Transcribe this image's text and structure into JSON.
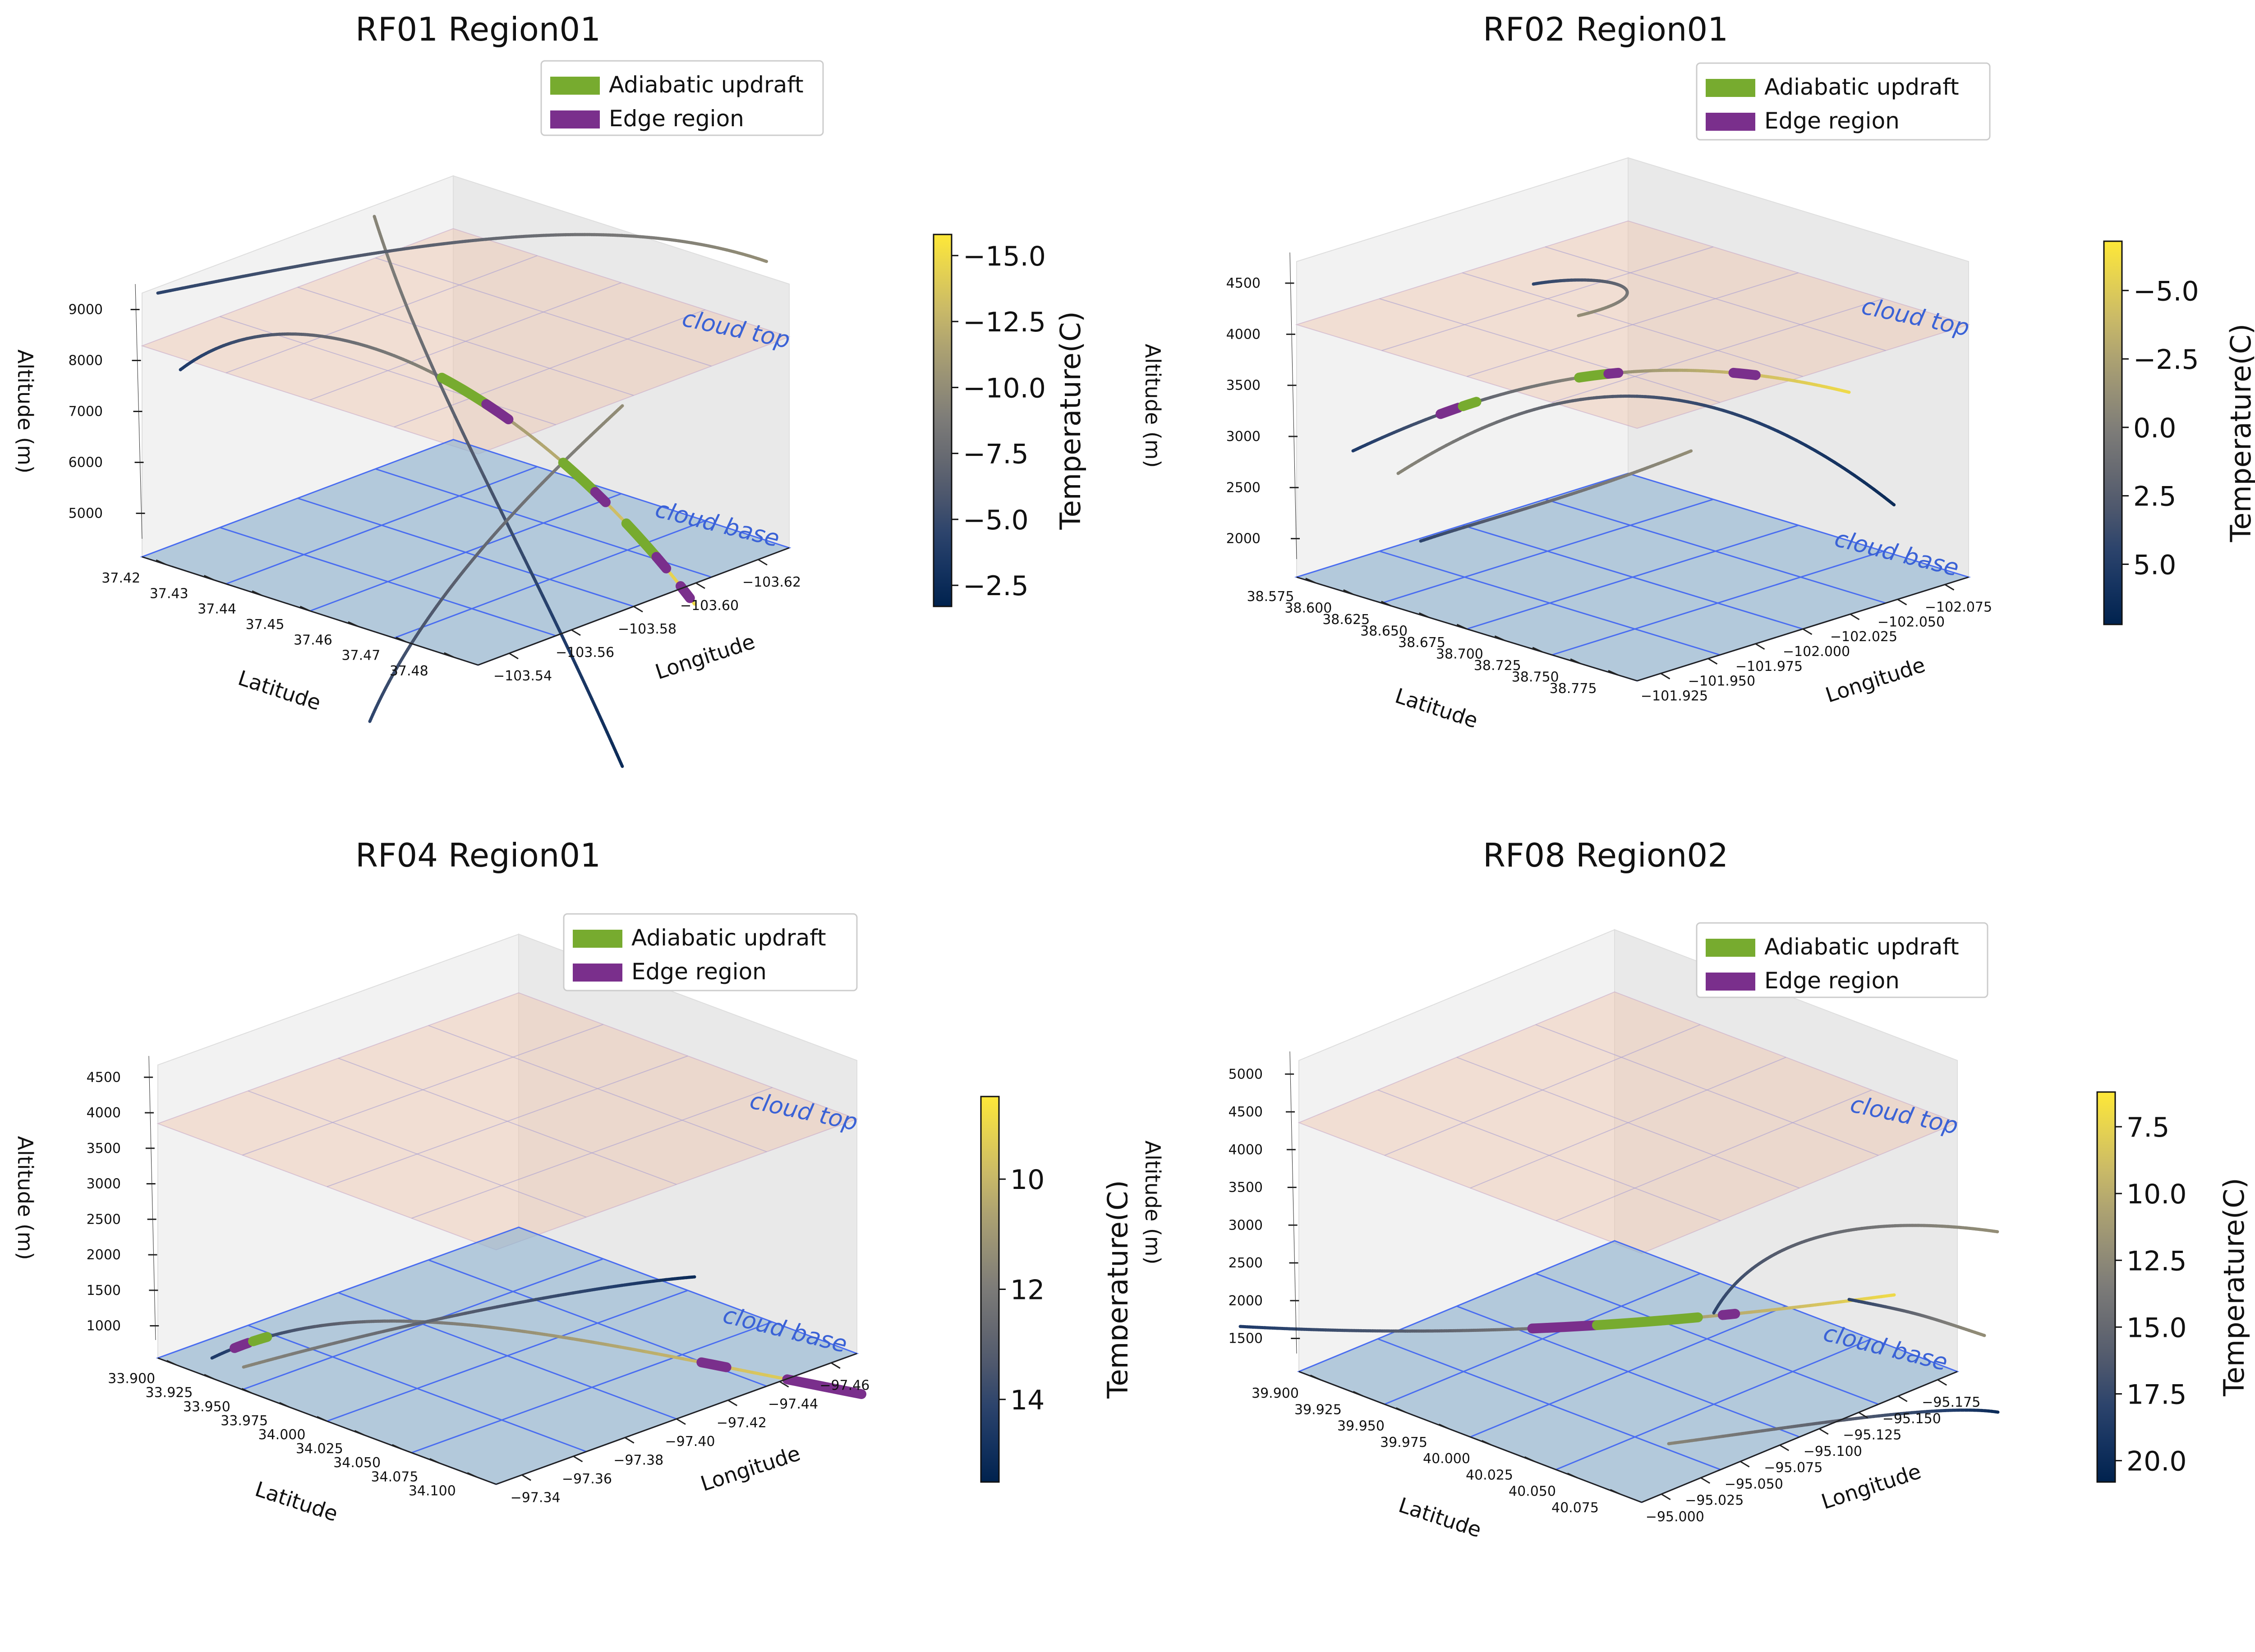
{
  "chart_data": [
    {
      "type": "line",
      "title": "RF01 Region01",
      "xlabel": "Latitude",
      "ylabel": "Longitude",
      "zlabel": "Altitude (m)",
      "colorbar_label": "Temperature(C)",
      "colorbar_ticks": [
        "−15.0",
        "−12.5",
        "−10.0",
        "−7.5",
        "−5.0",
        "−2.5"
      ],
      "colorbar_range": [
        -15.8,
        -1.7
      ],
      "latitude_ticks": [
        "37.42",
        "37.43",
        "37.44",
        "37.45",
        "37.46",
        "37.47",
        "37.48"
      ],
      "longitude_ticks": [
        "−103.54",
        "−103.56",
        "−103.58",
        "−103.60",
        "−103.62"
      ],
      "altitude_ticks": [
        "5000",
        "6000",
        "7000",
        "8000",
        "9000"
      ],
      "altitude_range": [
        4500,
        9500
      ],
      "cloud_top_label": "cloud top",
      "cloud_base_label": "cloud base",
      "legend": [
        {
          "label": "Adiabatic updraft",
          "color": "#77ab2f"
        },
        {
          "label": "Edge region",
          "color": "#7a2f8c"
        }
      ],
      "legend_position": "top-right"
    },
    {
      "type": "line",
      "title": "RF02 Region01",
      "xlabel": "Latitude",
      "ylabel": "Longitude",
      "zlabel": "Altitude (m)",
      "colorbar_label": "Temperature(C)",
      "colorbar_ticks": [
        "−5.0",
        "−2.5",
        "0.0",
        "2.5",
        "5.0"
      ],
      "colorbar_range": [
        -6.8,
        7.2
      ],
      "latitude_ticks": [
        "38.575",
        "38.600",
        "38.625",
        "38.650",
        "38.675",
        "38.700",
        "38.725",
        "38.750",
        "38.775"
      ],
      "longitude_ticks": [
        "−101.925",
        "−101.950",
        "−101.975",
        "−102.000",
        "−102.025",
        "−102.050",
        "−102.075"
      ],
      "altitude_ticks": [
        "2000",
        "2500",
        "3000",
        "3500",
        "4000",
        "4500"
      ],
      "altitude_range": [
        1800,
        4800
      ],
      "cloud_top_label": "cloud top",
      "cloud_base_label": "cloud base",
      "legend": [
        {
          "label": "Adiabatic updraft",
          "color": "#77ab2f"
        },
        {
          "label": "Edge region",
          "color": "#7a2f8c"
        }
      ],
      "legend_position": "top-right"
    },
    {
      "type": "line",
      "title": "RF04 Region01",
      "xlabel": "Latitude",
      "ylabel": "Longitude",
      "zlabel": "Altitude (m)",
      "colorbar_label": "Temperature(C)",
      "colorbar_ticks": [
        "10",
        "12",
        "14"
      ],
      "colorbar_range": [
        8.5,
        15.5
      ],
      "latitude_ticks": [
        "33.900",
        "33.925",
        "33.950",
        "33.975",
        "34.000",
        "34.025",
        "34.050",
        "34.075",
        "34.100"
      ],
      "longitude_ticks": [
        "−97.34",
        "−97.36",
        "−97.38",
        "−97.40",
        "−97.42",
        "−97.44",
        "−97.46"
      ],
      "altitude_ticks": [
        "1000",
        "1500",
        "2000",
        "2500",
        "3000",
        "3500",
        "4000",
        "4500"
      ],
      "altitude_range": [
        800,
        4800
      ],
      "cloud_top_label": "cloud top",
      "cloud_base_label": "cloud base",
      "legend": [
        {
          "label": "Adiabatic updraft",
          "color": "#77ab2f"
        },
        {
          "label": "Edge region",
          "color": "#7a2f8c"
        }
      ],
      "legend_position": "top-right"
    },
    {
      "type": "line",
      "title": "RF08 Region02",
      "xlabel": "Latitude",
      "ylabel": "Longitude",
      "zlabel": "Altitude (m)",
      "colorbar_label": "Temperature(C)",
      "colorbar_ticks": [
        "7.5",
        "10.0",
        "12.5",
        "15.0",
        "17.5",
        "20.0"
      ],
      "colorbar_range": [
        6.2,
        20.8
      ],
      "latitude_ticks": [
        "39.900",
        "39.925",
        "39.950",
        "39.975",
        "40.000",
        "40.025",
        "40.050",
        "40.075"
      ],
      "longitude_ticks": [
        "−95.000",
        "−95.025",
        "−95.050",
        "−95.075",
        "−95.100",
        "−95.125",
        "−95.150",
        "−95.175"
      ],
      "altitude_ticks": [
        "1500",
        "2000",
        "2500",
        "3000",
        "3500",
        "4000",
        "4500",
        "5000"
      ],
      "altitude_range": [
        1300,
        5300
      ],
      "cloud_top_label": "cloud top",
      "cloud_base_label": "cloud base",
      "legend": [
        {
          "label": "Adiabatic updraft",
          "color": "#77ab2f"
        },
        {
          "label": "Edge region",
          "color": "#7a2f8c"
        }
      ],
      "legend_position": "top-right"
    }
  ]
}
